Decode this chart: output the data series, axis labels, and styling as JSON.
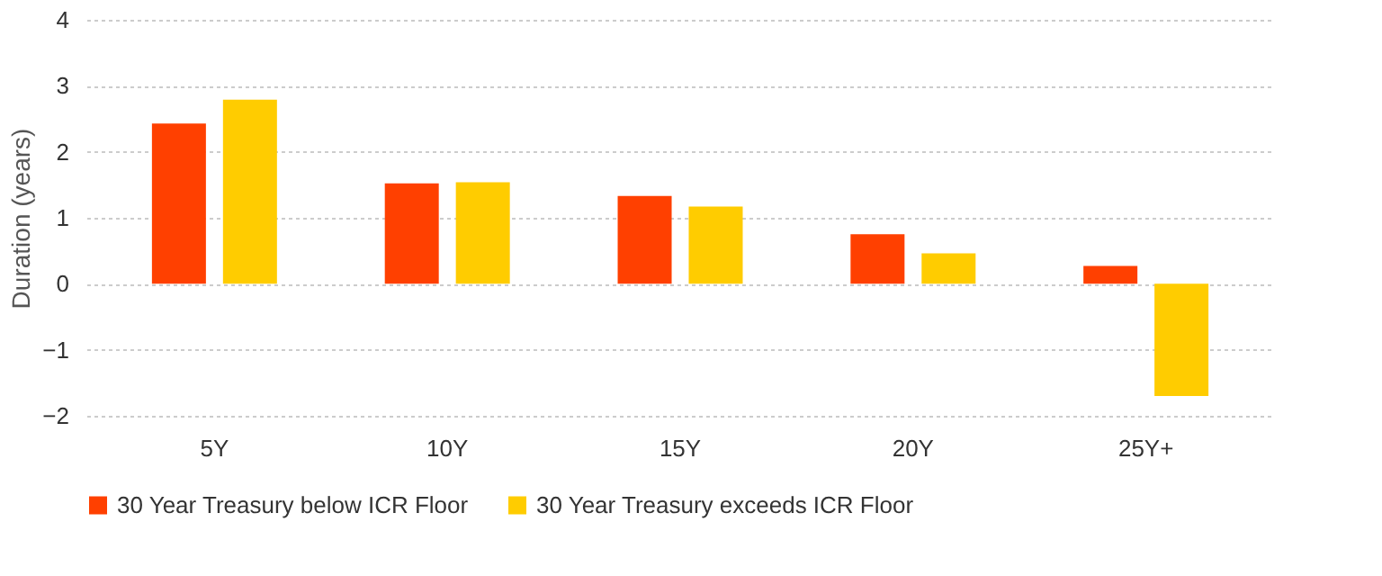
{
  "chart_data": {
    "type": "bar",
    "ylabel": "Duration (years)",
    "categories": [
      "5Y",
      "10Y",
      "15Y",
      "20Y",
      "25Y+"
    ],
    "series": [
      {
        "name": "30 Year Treasury below ICR Floor",
        "color": "#ff4000",
        "values": [
          2.43,
          1.52,
          1.33,
          0.75,
          0.27
        ]
      },
      {
        "name": "30 Year Treasury exceeds ICR Floor",
        "color": "#ffcc00",
        "values": [
          2.79,
          1.54,
          1.17,
          0.46,
          -1.7
        ]
      }
    ],
    "ylim": [
      -2,
      4
    ],
    "yticks": [
      -2,
      -1,
      0,
      1,
      2,
      3,
      4
    ],
    "grid": "y",
    "legend": "bottom"
  }
}
